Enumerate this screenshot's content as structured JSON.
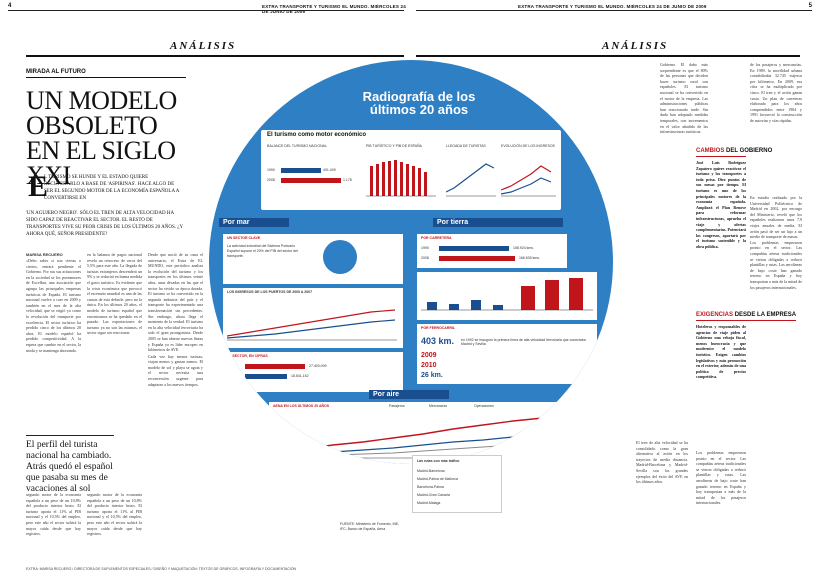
{
  "colors": {
    "accent": "#c0161b",
    "blue": "#2f7fc4",
    "dark_blue": "#1a4f8f"
  },
  "header": {
    "left_page_number": "4",
    "right_page_number": "5",
    "left_running_head": "EXTRA TRANSPORTE Y TURISMO EL MUNDO. MIÉRCOLES 24 DE JUNIO DE 2009",
    "right_running_head": "EXTRA TRANSPORTE Y TURISMO EL MUNDO. MIÉRCOLES 24 DE JUNIO DE 2009",
    "section": "ANÁLISIS"
  },
  "article": {
    "kicker": "MIRADA AL FUTURO",
    "headline": "UN MODELO OBSOLETO EN EL SIGLO XXI",
    "dropcap": "E",
    "deck_first": "L TURISMO SE HUNDE Y EL ESTADO QUIERE RECUPERARLO A BASE DE 'ASPIRINAS'. HACE ALGO DE SER EL SEGUNDO MOTOR DE LA ECONOMÍA ESPAÑOLA A CONVERTIRSE EN",
    "deck_rest": "'UN AGUJERO NEGRO'. SÓLO EL TREN DE ALTA VELOCIDAD HA SIDO CAPAZ DE REACTIVAR EL SECTOR. EL RESTO DE TRANSPORTES VIVE SU PEOR CRISIS DE LOS ÚLTIMOS 20 AÑOS. ¿Y AHORA QUÉ, SEÑOR PRESIDENTE?",
    "byline": "MARISA RECUERO",
    "col1_text": "«Debo saber si son ciertas o ciertos, entrará pendiente el Gobierno. Por sus sus actuaciones en la sociedad se los pormenores de Excelbur, una asociación que agrupa las principales empresas turísticas de España. El turismo nacional vuelve a caer en 2009 y también en el mes de la alta velocidad, que se erigió ya como la revolución del transporte por excelencia. El sector turístico ha perdido cinco de los últimos 20 años. El modelo español ha perdido competitividad. A la espera que cambie en el sector, la moda y se mantenga ahorrando.",
    "col2_text": "en la balanza de pagos nacional revela un retroceso de cerca del 5,5% para este año. La llegada de turistas extranjeros descenderá un 9% y se reducirá en buena medida el gasto turístico. Es evidente que la crisis económica que provocó el escenario mundial es una de las causas de esta debacle, pero no la única. En los últimos 20 años, el modelo de turismo español que encontramos se ha quedado en el pasado. Las exportaciones de turismo ya no son las mismas, el sector sigue sin reaccionar.",
    "col3_text": "Desde que nació de su cuna el aniversario, el Extra de EL MUNDO, este periódico analiza la evolución del turismo y los transportes en los últimos veinte años, unas décadas en las que el sector ha vivido su época dorada. El turismo se ha convertido en la segunda industria del país y el transporte ha experimentado una transformación sin precedentes. Sin embargo, ahora llega el momento de la verdad. El turismo en la alta velocidad ferroviaria ha sido el gran protagonista. Desde 2005 se han abierto nuevas líneas y España ya es líder europeo en kilómetros de AVE.",
    "pull_quote": "El perfil del turista nacional ha cambiado. Atrás quedó el español que pasaba su mes de vacaciones al sol",
    "col1b_text": "segundo motor de la economía española a un peso de un 10,8% del producto interior bruto. El turismo aporta el 11% al PIB nacional y el 10,5% del empleo, pero este año el sector sufrirá la mayor caída desde que hay registros.",
    "col3b_text": "Cada vez hay menos turistas, viajan menos y gastan menos. El modelo de sol y playa se agota y el sector necesita una reconversión urgente para adaptarse a los nuevos tiempos.",
    "credits": "EXTRA: MARISA RECUERO / DIRECTORA DE SUPLEMENTOS ESPECIALES / DISEÑO Y MAQUETACIÓN: TEXTOS DE GRÁFICOS, INFOGRAFÍA Y DOCUMENTACIÓN"
  },
  "right": {
    "col_a_text": "Gobierno. El daño más sorprendente es que el 80% de las personas que deciden hacer turismo rural son españoles. El turismo nacional se ha convertido en el motor de la empresa. Las administraciones públicas han reaccionado tarde. Sin duda han adoptado medidas temporales, con incrementos en el valor añadido de las infraestructuras turísticas.",
    "col_b_text": "de los pasajeros y mercancías. En 1989, la movilidad urbana contabilizaba 32.745 viajeros por kilómetro. En 2009, esa cifra se ha multiplicado por cinco. El tren y el avión ganan cuota. Un plan de carreteras elaborado para los años comprendidos entre 1984 y 1991 favoreció la construcción de autovías y vías rápidas.",
    "label1_a": "CAMBIOS",
    "label1_b": "DEL GOBIERNO",
    "box1_text": "José Luis Rodríguez Zapatero quiere reactivar el turismo y los transportes a toda prisa. Diez puntos de sus mesas por tiempo. El turismo es uno de los principales motores de la economía española. Ampliará el Plan Renove para reformar infraestructuras, aprueba el viaje y ofertas complementarias. Potenciará los congresos, aportará por el turismo sostenible y la obra pública.",
    "label2_a": "EXIGENCIAS",
    "label2_b": "DESDE LA EMPRESA",
    "box2_text": "Hoteleros y responsables de agencias de viaje piden al Gobierno una rebaja fiscal, menos burocracia y que modernice el modelo turístico. Exigen cambios legislativos y más promoción en el exterior, además de una política de precios competitiva.",
    "col_c_text": "El tren de alta velocidad se ha consolidado como la gran alternativa al avión en los trayectos de media distancia. Madrid-Barcelona y Madrid-Sevilla son los grandes ejemplos del éxito del AVE en los últimos años.",
    "col_d_text": "En estudio realizado por la Universidad Politécnica de Madrid en 2002, por encargo del Ministerio, reveló que los españoles realizaron unos 7,9 viajes anuales de media. El avión pasó de ser un lujo a un medio de transporte de masas.",
    "col_e_text": "Los problemas empezaron pronto en el sector. Las compañías aéreas tradicionales se vieron obligadas a reducir plantillas y rutas. Las aerolíneas de bajo coste han ganado terreno en España y hoy transportan a más de la mitad de los pasajeros internacionales."
  },
  "infographic": {
    "title": "Radiografía de los últimos 20 años",
    "turismo_title": "El turismo como motor económico",
    "balance_label": "BALANCE DEL TURISMO NACIONAL",
    "balance_rows": [
      {
        "year": "1990",
        "value": "401.409"
      },
      {
        "year": "2008",
        "value": "1.178"
      }
    ],
    "pib_label": "PIB TURÍSTICO Y PIB DE ESPAÑA",
    "llegada_label": "LLEGADA DE TURISTAS",
    "ingresos_label": "EVOLUCIÓN DE LOS INGRESOS",
    "por_mar": "Por mar",
    "por_tierra": "Por tierra",
    "por_aire": "Por aire",
    "sector_clave": "UN SECTOR CLAVE",
    "sector_text": "La actividad industrial del Sistema Portuario Español supone el 20% del PIB del sector del transporte.",
    "puertos_label": "LOS INGRESOS DE LOS PUERTOS DE 2000 A 2007",
    "carretera_label": "POR CARRETERA",
    "carretera_rows": [
      {
        "year": "1990",
        "value": "158.924 kms."
      },
      {
        "year": "2008",
        "value": "166.639 kms."
      }
    ],
    "road_regions": [
      "Madrid",
      "Cataluña",
      "Andalucía",
      "C.Val.",
      "Diputaciones y Cabildos"
    ],
    "road_values": [
      "15.632",
      "12.723",
      "16.998",
      "10.632",
      "48.189",
      "65.229",
      "66.581"
    ],
    "ferrocarril_label": "POR FERROCARRIL",
    "km_403": "403 km.",
    "km_text": "en 1992 se inauguró la primera línea de alta velocidad ferroviaria que conectaba Madrid y Sevilla",
    "year_2009": "2009",
    "year_2010": "2010",
    "km_26": "26 km.",
    "aena_label": "AENA EN LOS ÚLTIMOS 20 AÑOS",
    "pasajeros_label": "Pasajeros",
    "mercancias_label": "Mercancías",
    "operaciones_label": "Operaciones",
    "rutas_title": "Las rutas con más tráfico",
    "rutas": [
      "Madrid-Barcelona",
      "Madrid-Palma de Mallorca",
      "Barcelona-Palma",
      "Madrid-Gran Canaria",
      "Madrid-Málaga"
    ],
    "sector_civil_label": "EL SECTOR, EN CIFRAS",
    "sector_civil_rows": [
      {
        "year": "2008",
        "value": "27.400.099"
      },
      {
        "year": "2009",
        "value": "18.541.152"
      }
    ],
    "fuente": "FUENTE: Ministerio de Fomento, INE, IFC, Banco de España, Aena"
  }
}
